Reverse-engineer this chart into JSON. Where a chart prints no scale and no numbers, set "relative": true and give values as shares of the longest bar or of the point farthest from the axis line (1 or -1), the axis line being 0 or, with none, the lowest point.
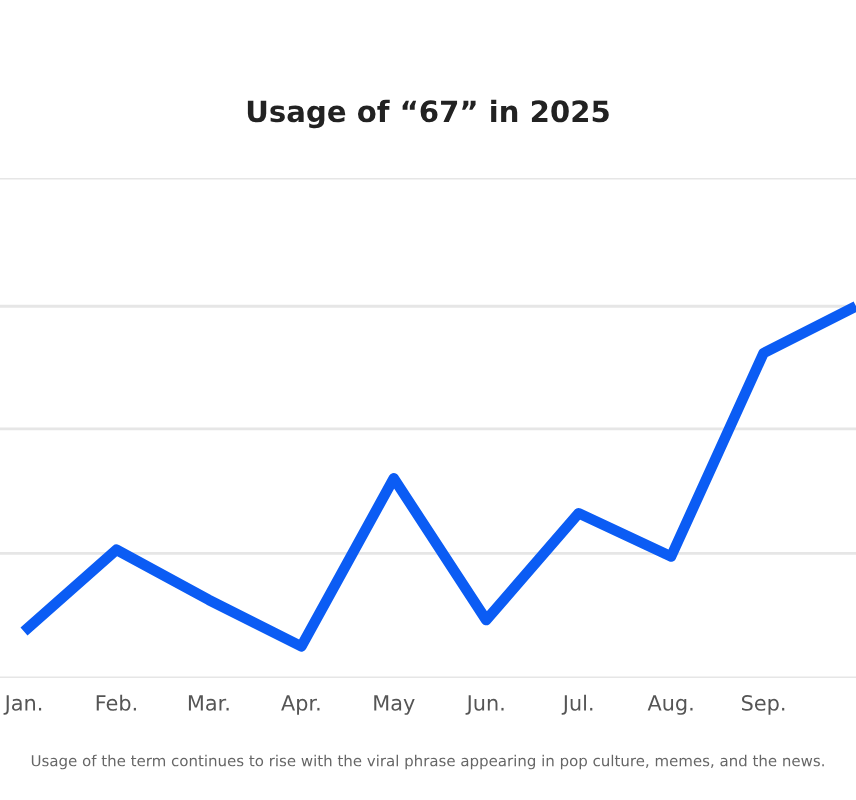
{
  "chart_data": {
    "type": "line",
    "title": "Usage of “67” in 2025",
    "categories": [
      "Jan.",
      "Feb.",
      "Mar.",
      "Apr.",
      "May",
      "Jun.",
      "Jul.",
      "Aug.",
      "Sep.",
      null
    ],
    "series": [
      {
        "color": "#0b5cf4",
        "values": [
          0.125,
          0.345,
          0.21,
          0.085,
          0.537,
          0.156,
          0.443,
          0.327,
          0.874,
          1.0
        ]
      }
    ],
    "relative": true,
    "marker": "none",
    "ref_lines": [
      {
        "axis": "y",
        "value": 0,
        "color": "#e6e6e6"
      },
      {
        "axis": "y",
        "value": 0.335,
        "color": "#e6e6e6"
      },
      {
        "axis": "y",
        "value": 0.67,
        "color": "#e6e6e6"
      },
      {
        "axis": "y",
        "value": 1.0,
        "color": "#e6e6e6"
      },
      {
        "axis": "y",
        "value": 1.345,
        "color": "#e6e6e6"
      }
    ],
    "line_style": "solid",
    "legend": false,
    "annotations": [
      "Usage of the term continues to rise with the viral phrase appearing in pop culture, memes, and the news."
    ]
  }
}
